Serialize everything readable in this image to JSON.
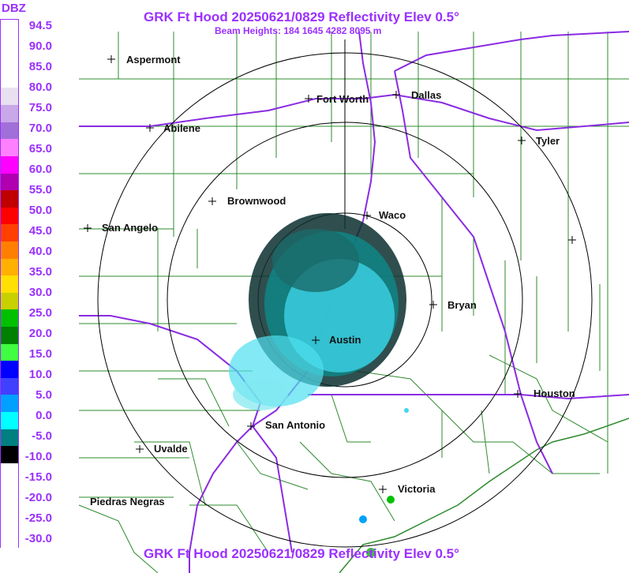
{
  "header": {
    "title": "GRK Ft Hood 20250621/0829 Reflectivity Elev 0.5°",
    "subtitle": "Beam Heights: 184 1645 4282 8095 m",
    "footer_title": "GRK Ft Hood 20250621/0829 Reflectivity Elev 0.5°"
  },
  "legend": {
    "unit": "DBZ",
    "ticks": [
      "94.5",
      "90.0",
      "85.0",
      "80.0",
      "75.0",
      "70.0",
      "65.0",
      "60.0",
      "55.0",
      "50.0",
      "45.0",
      "40.0",
      "35.0",
      "30.0",
      "25.0",
      "20.0",
      "15.0",
      "10.0",
      "5.0",
      "0.0",
      "-5.0",
      "-10.0",
      "-15.0",
      "-20.0",
      "-25.0",
      "-30.0"
    ],
    "colors": [
      "#ffffff",
      "#ffffff",
      "#ffffff",
      "#ffffff",
      "#e8e0f0",
      "#c8a8e8",
      "#a070d8",
      "#ff80ff",
      "#ff00ff",
      "#b000b0",
      "#c00000",
      "#ff0000",
      "#ff4000",
      "#ff8000",
      "#ffb000",
      "#ffe000",
      "#c8d000",
      "#00c000",
      "#008000",
      "#40ff40",
      "#0000ff",
      "#4040ff",
      "#00a0ff",
      "#00ffff",
      "#008080",
      "#000000",
      "#ffffff",
      "#ffffff",
      "#ffffff",
      "#ffffff",
      "#ffffff"
    ]
  },
  "cities": [
    {
      "name": "Aspermont"
    },
    {
      "name": "Fort Worth"
    },
    {
      "name": "Dallas"
    },
    {
      "name": "Abilene"
    },
    {
      "name": "Tyler"
    },
    {
      "name": "Brownwood"
    },
    {
      "name": "Waco"
    },
    {
      "name": "San Angelo"
    },
    {
      "name": "Bryan"
    },
    {
      "name": "Austin"
    },
    {
      "name": "Houston"
    },
    {
      "name": "San Antonio"
    },
    {
      "name": "Uvalde"
    },
    {
      "name": "Victoria"
    },
    {
      "name": "Piedras Negras"
    }
  ]
}
